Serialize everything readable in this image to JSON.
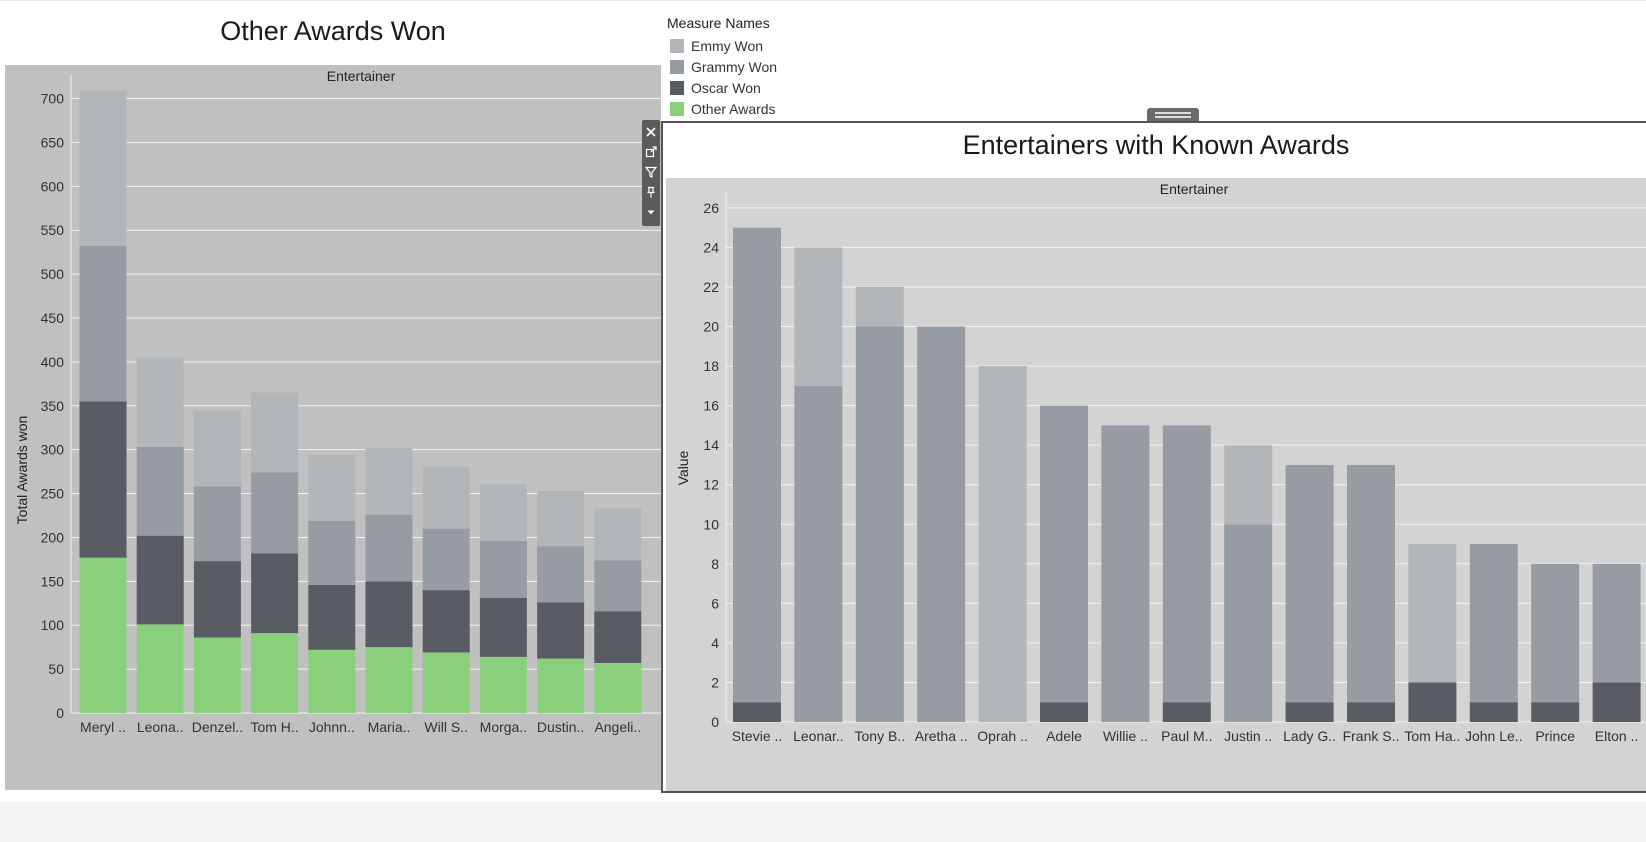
{
  "legend": {
    "title": "Measure Names",
    "items": [
      {
        "label": "Emmy Won",
        "color": "#b3b6b8"
      },
      {
        "label": "Grammy Won",
        "color": "#979ba2"
      },
      {
        "label": "Oscar Won",
        "color": "#595c63"
      },
      {
        "label": "Other Awards",
        "color": "#8ad07c"
      }
    ]
  },
  "toolbar": {
    "icons": [
      "close-icon",
      "popout-icon",
      "filter-icon",
      "pin-icon",
      "more-icon"
    ]
  },
  "chart_data": [
    {
      "type": "bar",
      "stacked": true,
      "title": "Other Awards Won",
      "column_header": "Entertainer",
      "ylabel": "Total Awards won",
      "ylim": [
        0,
        720
      ],
      "yticks": [
        0,
        50,
        100,
        150,
        200,
        250,
        300,
        350,
        400,
        450,
        500,
        550,
        600,
        650,
        700
      ],
      "grid": true,
      "categories": [
        "Meryl ..",
        "Leona..",
        "Denzel..",
        "Tom H..",
        "Johnn..",
        "Maria..",
        "Will S..",
        "Morga..",
        "Dustin..",
        "Angeli.."
      ],
      "series": [
        {
          "name": "Other Awards",
          "color": "#8ad07c",
          "values": [
            177,
            101,
            86,
            91,
            72,
            75,
            69,
            64,
            62,
            57
          ]
        },
        {
          "name": "Oscar Won",
          "color": "#595c63",
          "values": [
            178,
            101,
            87,
            91,
            74,
            75,
            71,
            67,
            64,
            59
          ]
        },
        {
          "name": "Grammy Won",
          "color": "#979ba2",
          "values": [
            177,
            101,
            85,
            92,
            73,
            76,
            70,
            65,
            64,
            58
          ]
        },
        {
          "name": "Emmy Won",
          "color": "#b3b6b8",
          "values": [
            177,
            102,
            87,
            91,
            75,
            76,
            71,
            65,
            63,
            59
          ]
        }
      ]
    },
    {
      "type": "bar",
      "stacked": true,
      "title": "Entertainers with Known Awards",
      "column_header": "Entertainer",
      "ylabel": "Value",
      "ylim": [
        0,
        26.5
      ],
      "yticks": [
        0,
        2,
        4,
        6,
        8,
        10,
        12,
        14,
        16,
        18,
        20,
        22,
        24,
        26
      ],
      "grid": true,
      "categories": [
        "Stevie ..",
        "Leonar..",
        "Tony B..",
        "Aretha ..",
        "Oprah ..",
        "Adele",
        "Willie ..",
        "Paul M..",
        "Justin ..",
        "Lady G..",
        "Frank S..",
        "Tom Ha..",
        "John Le..",
        "Prince",
        "Elton .."
      ],
      "series": [
        {
          "name": "Oscar Won",
          "color": "#595c63",
          "values": [
            1,
            0,
            0,
            0,
            0,
            1,
            0,
            1,
            0,
            1,
            1,
            2,
            1,
            1,
            2
          ]
        },
        {
          "name": "Grammy Won",
          "color": "#979ba2",
          "values": [
            24,
            17,
            20,
            20,
            0,
            15,
            15,
            14,
            10,
            12,
            12,
            0,
            8,
            7,
            6
          ]
        },
        {
          "name": "Emmy Won",
          "color": "#b3b6b8",
          "values": [
            0,
            7,
            2,
            0,
            18,
            0,
            0,
            0,
            4,
            0,
            0,
            7,
            0,
            0,
            0
          ]
        }
      ]
    }
  ]
}
